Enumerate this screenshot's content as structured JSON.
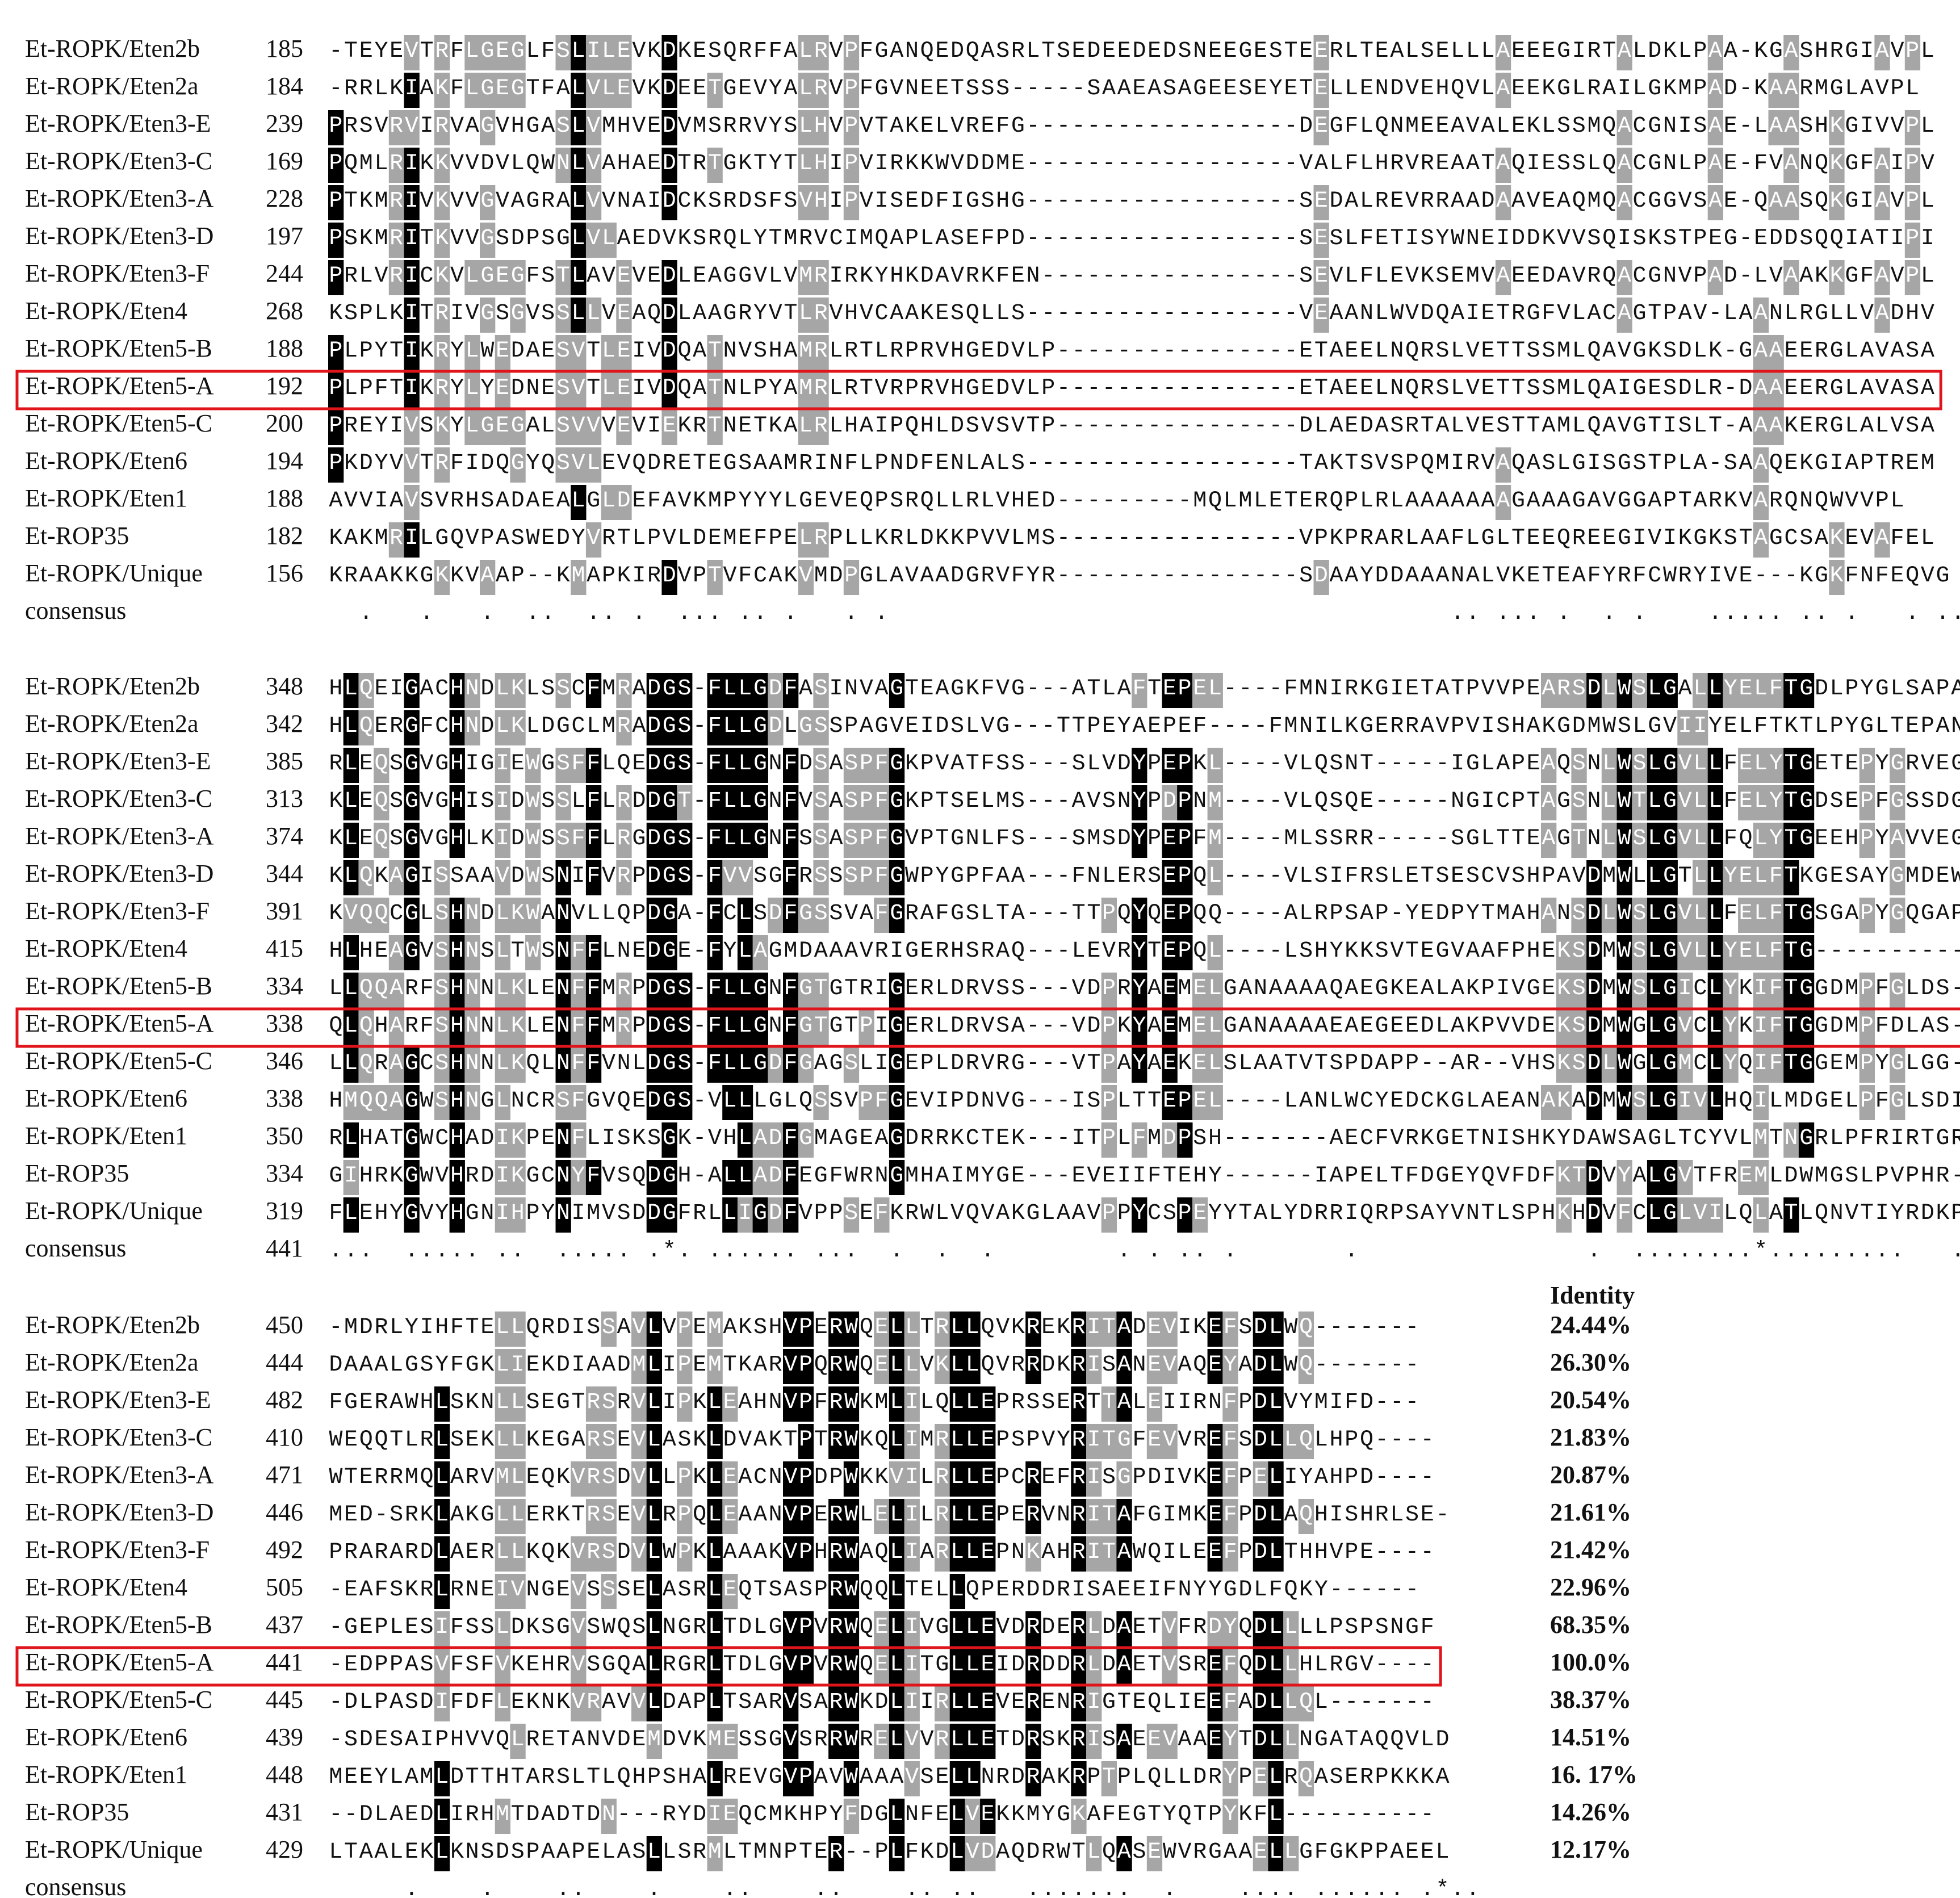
{
  "identity_header": "Identity",
  "consensus_label": "consensus",
  "colors": {
    "identical": "#000000",
    "similar": "#a6a6a6",
    "motif_blue": "#1f1fd8",
    "motif_green_bg": "#39e639",
    "highlight_box": "#e0141b"
  },
  "highlighted_sequence": "Et-ROPK/Eten5-A",
  "blocks": [
    {
      "rows": [
        {
          "name": "Et-ROPK/Eten2b",
          "start": "185",
          "seq": "-TEYEVTRFLGEGLFSLILEVKDKESQRFFALRVPFGANQEDQASRLTSEDEEDEDSNEEGESTEERLTEALSELLLAEEEGIRTALDKLPAA-KGASHRGIAVPL"
        },
        {
          "name": "Et-ROPK/Eten2a",
          "start": "184",
          "seq": "-RRLKIAKFLGEGTFALVLEVKDEETGEVYALRVPFGVNEETSSS-----SAAEASAGEESEYETELLENDVEHQVLAEEKGLRAILGKMPAD-KAARMGLAVPL"
        },
        {
          "name": "Et-ROPK/Eten3-E",
          "start": "239",
          "seq": "PRSVRVIRVAGVHGASLVMHVEDVMSRRVYSLHVPVTAKELVREFG------------------DEGFLQNMEEAVALEKLSSMQACGNISAE-LAASHKGIVVPL"
        },
        {
          "name": "Et-ROPK/Eten3-C",
          "start": "169",
          "seq": "PQMLRIKKVVDVLQWNLVAHAEDTRTGKTYTLHIPVIRKKWVDDME------------------VALFLHRVREAATAQIESSLQACGNLPAE-FVANQKGFAIPV"
        },
        {
          "name": "Et-ROPK/Eten3-A",
          "start": "228",
          "seq": "PTKMRIVKVVGVAGRALVVNAIDCKSRDSFSVHIPVISEDFIGSHG------------------SEDALREVRRAADAAVEAQMQACGGVSAE-QAASQKGIAVPL"
        },
        {
          "name": "Et-ROPK/Eten3-D",
          "start": "197",
          "seq": "PSKMRITKVVGSDPSGLVLAEDVKSRQLYTMRVCIMQAPLASEFPD------------------SESLFETISYWNEIDDKVVSQISKSTPEG-EDDSQQIATIPI"
        },
        {
          "name": "Et-ROPK/Eten3-F",
          "start": "244",
          "seq": "PRLVRICKVLGEGFSTLAVEVEDLEAGGVLVMRIRKYHKDAVRKFEN-----------------SEVLFLEVKSEMVAEEDAVRQACGNVPAD-LVAAKKGFAVPL"
        },
        {
          "name": "Et-ROPK/Eten4",
          "start": "268",
          "seq": "KSPLKITRIVGSGVSSLLVEAQDLAAGRYVTLRVHVCAAKESQLLS------------------VEAANLWVDQAIETRGFVLACAGTPAV-LAANLRGLLVADHV"
        },
        {
          "name": "Et-ROPK/Eten5-B",
          "start": "188",
          "seq": "PLPYTIKRYLWEDAESVTLEIVDQATNVSHAMRLRTLRPRVHGEDVLP----------------ETAEELNQRSLVETTSSMLQAVGKSDLK-GAAEERGLAVASA"
        },
        {
          "name": "Et-ROPK/Eten5-A",
          "start": "192",
          "seq": "PLPFTIKRYLYEDNESVTLEIVDQATNLPYAMRLRTVRPRVHGEDVLP----------------ETAEELNQRSLVETTSSMLQAIGESDLR-DAAEERGLAVASA"
        },
        {
          "name": "Et-ROPK/Eten5-C",
          "start": "200",
          "seq": "PREYIVSKYLGEGALSVVVEVIEKRTNETKALRLHAIPQHLDSVSVTP----------------DLAEDASRTALVESTTAMLQAVGTISLT-AAAKERGLALVSA"
        },
        {
          "name": "Et-ROPK/Eten6",
          "start": "194",
          "seq": "PKDYVVTRFIDQGYQSVLEVQDRETEGSAAMRINFLPNDFENLALS------------------TAKTSVSPQMIRVAQASLGISGSTPLA-SAAQEKGIAPTREM"
        },
        {
          "name": "Et-ROPK/Eten1",
          "start": "188",
          "seq": "AVVIAVSVRHSADAEALGLDEFAVKMPYYYLGEVEQPSRQLLRLVHED---------MQLMLETERQPLRLAAAAAAAGAAAGAVGGAPTARKVARQNQWVVPL"
        },
        {
          "name": "Et-ROP35",
          "start": "182",
          "seq": "KAKMRILGQVPASWEDYVRTLPVLDEMEFPELRPLLKRLDKKPVVLMS----------------VPKPRARLAAFLGLTEEQREEGIVIKGKSTAGCSAKEVAFEL"
        },
        {
          "name": "Et-ROPK/Unique",
          "start": "156",
          "seq": "KRAAKKGKKVAAP--KMAPKIRDVPTVFCAKVMDPGLAVAADGRVFYR----------------SDAAYDDAAANALVKETEAFYRFCWRYIVE---KGKFNFEQVG"
        }
      ],
      "consensus_num": "",
      "consensus": "  .   .   .  ..  .. .  ... .. .   . .                                     .. ... .  . .    ..... .. .   . ... ."
    },
    {
      "rows": [
        {
          "name": "Et-ROPK/Eten2b",
          "start": "348",
          "seq": "HLQEIGACHNDLKLSSCFMRADGS-FLLGDFASINVAGTEAGKFVG---ATLAFTEPEL----FMNIRKGIETATPVVPEARSDLWSLGALLYELFTGDLPYGLSAPAHS"
        },
        {
          "name": "Et-ROPK/Eten2a",
          "start": "342",
          "seq": "HLQERGFCHNDLKLDGCLMRADGS-FLLGDLGSSPAGVEIDSLVG---TTPEYAEPEF----FMNILKGERRAVPVISHAKGDMWSLGVIIYELFTKTLPYGLTEPANI"
        },
        {
          "name": "Et-ROPK/Eten3-E",
          "start": "385",
          "seq": "RLEQSGVGHIGIEWGSFFLQEDGS-FLLGNFDSASPFGKPVATFSS---SLVDYPEPKL----VLQSNT-----IGLAPEAQSNLWSLGVLLFELYTGETEPYGRVEGST"
        },
        {
          "name": "Et-ROPK/Eten3-C",
          "start": "313",
          "seq": "KLEQSGVGHISIDWSSLFLRDDGT-FLLGNFVSASPFGKPTSELMS---AVSNYPDPNM----VLQSQE-----NGICPTAGSNLWTLGVLLFELYTGDSEPFGSSDGPD"
        },
        {
          "name": "Et-ROPK/Eten3-A",
          "start": "374",
          "seq": "KLEQSGVGHLKIDWSSFFLRGDGS-FLLGNFSSASPFGVPTGNLFS---SMSDYPEPFM----MLSSRR-----SGLTTEAGTNLWSLGVLLFQLYTGEEHPYAVVEGRT"
        },
        {
          "name": "Et-ROPK/Eten3-D",
          "start": "344",
          "seq": "KLQKAGISSAAVDWSNIFVRPDGS-FVVSGFRSSSPFGWPYGPFAA---FNLERSEPQL----VLSIFRSLETSESCVSHPAVDMWLLGTLLYELFTKGESAYGMDEWYE"
        },
        {
          "name": "Et-ROPK/Eten3-F",
          "start": "391",
          "seq": "KVQQCGLSHNDLKWANVLLQPDGA-FCLSDFGSSVAFGRAFGSLTA---TTPQYQEPQQ----ALRPSAP-YEDPYTMAHANSDLWSLGVLLFELFTGSGAPYGQGAPKS"
        },
        {
          "name": "Et-ROPK/Eten4",
          "start": "415",
          "seq": "HLHEAGVSHNSLTWSNFFLNEDGE-FYLAGMDAAAVRIGERHSRAQ---LEVRYTEPQL----LSHYKKSVTEGVAAFPHEKSDMWSLGVLLYELFTG------------"
        },
        {
          "name": "Et-ROPK/Eten5-B",
          "start": "334",
          "seq": "LLQQARFSHNNLKLENFFMRPDGS-FLLGNFGTGTRIGERLDRVSS---VDPRYAEMELGANAAAAQAEGKEALAKPIVGEKSDMWSLGICLYKIFTGGDMPFGLDS---"
        },
        {
          "name": "Et-ROPK/Eten5-A",
          "start": "338",
          "seq": "QLQHARFSHNNLKLENFFMRPDGS-FLLGNFGTGTPIGERLDRVSA---VDPKYAEMELGANAAAAEAEGEEDLAKPVVDEKSDMWGLGVCLYKIFTGGDMPFDLAS---"
        },
        {
          "name": "Et-ROPK/Eten5-C",
          "start": "346",
          "seq": "LLQRAGCSHNNLKQLNFFVNLDGS-FLLGDFGAGSLIGEPLDRVRG---VTPAYAEKELSLAATVTSPDAPP--AR--VHSKSDLWGLGMCLYQIFTGGEMPYGLGG---"
        },
        {
          "name": "Et-ROPK/Eten6",
          "start": "338",
          "seq": "HMQQAGWSHNGLNCRSFGVQEDGS-VLLLGLQSSVPFGEVIPDNVG---ISPLTTEPEL----LANLWCYEDCKGLAEANAKADMWSLGIVLHQILMDGELPFGLSDIP-"
        },
        {
          "name": "Et-ROPK/Eten1",
          "start": "350",
          "seq": "RLHATGWCHADIKPENFLISKSGK-VHLADFGMAGEAGDRRKCTEK---ITPLFMDPSH-------AECFVRKGETNISHKYDAWSAGLTCYVLMTNGRLPFRIRTGRG"
        },
        {
          "name": "Et-ROP35",
          "start": "334",
          "seq": "GIHRKGWVHRDIKGCNYFVSQDGH-ALLADFEGFWRNGMHAIMYGE---EVEIIFTEHY------IAPELTFDGEYQVFDFKTDVYALGVTFREMLDWMGSLPVPHR---"
        },
        {
          "name": "Et-ROPK/Unique",
          "start": "319",
          "seq": "FLEHYGVYHGNIHPYNIMVSDDGFRLLIGDFVPPSEFKRWLVQVAKGLAAVPPYCSPEYYTALYDRRIQRPSAYVNTLSPHKHDVFCLGLVILQLATLQNVTIYRDKPKK"
        }
      ],
      "consensus_num": "441",
      "consensus": "...  ..... ..  ..... .*. ...... ...  .  .  .        . . .. .       .               .  ........*.........   ..."
    },
    {
      "rows": [
        {
          "name": "Et-ROPK/Eten2b",
          "start": "450",
          "seq": "-MDRLYIHFTELLQRDISSAVLVPEMAKSHVPERWQELLTRLLQVKREKRITADEVIKEFSDLWQ-------"
        },
        {
          "name": "Et-ROPK/Eten2a",
          "start": "444",
          "seq": "DAAALGSYFGKLIEKDIAADMLIPEMTKARVPQRWQELLVKLLQVRRDKRISANEVAQEYADLWQ-------"
        },
        {
          "name": "Et-ROPK/Eten3-E",
          "start": "482",
          "seq": "FGERAWHLSKNLLSEGTRSRVLIPKLEAHNVPFRWKMLILQLLEPRSSERTTALEIIRNFPDLVYMIFD---"
        },
        {
          "name": "Et-ROPK/Eten3-C",
          "start": "410",
          "seq": "WEQQTLRLSEKLLKEGARSEVLASKLDVAKTPTRWKQLIMRLLEPSPVYRITGFEVVREFSDLLQLHPQ----"
        },
        {
          "name": "Et-ROPK/Eten3-A",
          "start": "471",
          "seq": "WTERRMQLARVMLEQKVRSDVLLPKLEACNVPDPWKKVILRLLEPCREFRISGPDIVKEFPELIYAHPD----"
        },
        {
          "name": "Et-ROPK/Eten3-D",
          "start": "446",
          "seq": "MED-SRKLAKGLLERKTRSEVLRPQLEAANVPERWLELILRLLEPERVNRITAFGIMKEFPDLAQHISHRLSE-"
        },
        {
          "name": "Et-ROPK/Eten3-F",
          "start": "492",
          "seq": "PRARARDLAERLLKQKVRSDVLWPKLAAAKVPHRWAQLIARLLEPNKAHRITAWQILEEFPDLTHHVPE----"
        },
        {
          "name": "Et-ROPK/Eten4",
          "start": "505",
          "seq": "-EAFSKRLRNEIVNGEVSSSELASRLEQTSASPRWQQLTELLQPERDDRISAEEIFNYYGDLFQKY------"
        },
        {
          "name": "Et-ROPK/Eten5-B",
          "start": "437",
          "seq": "-GEPLESIFSSLDKSGVSWQSLNGRLTDLGVPVRWQELIVGLLEVDRDERLDAETVFRDYQDLLLLPSPSNGF"
        },
        {
          "name": "Et-ROPK/Eten5-A",
          "start": "441",
          "seq": "-EDPPASVFSFVKEHRVSGQALRGRLTDLGVPVRWQELITGLLEIDRDDRLDAETVSREFQDLLHLRGV----"
        },
        {
          "name": "Et-ROPK/Eten5-C",
          "start": "445",
          "seq": "-DLPASDIFDFLEKNKVRAVVLDAPLTSARVSARWKDLIIRLLEVERENRIGTEQLIEEFADLLQL-------"
        },
        {
          "name": "Et-ROPK/Eten6",
          "start": "439",
          "seq": "-SDESAIPHVVQLRETANVDEMDVKMESSGVSRRWRELVVRLLETDRSKRISAEEVAAEYTDLLNGATAQQVLD"
        },
        {
          "name": "Et-ROPK/Eten1",
          "start": "448",
          "seq": "MEEYLAMLDTTHTARSLTLQHPSHALREVGVPAVWAAAVSELLNRDRAKRPTPLQLLDRYPELRQASERPKKKA"
        },
        {
          "name": "Et-ROP35",
          "start": "431",
          "seq": "--DLAEDLIRHMTDADTDN---RYDIEQCMKHPYFDGLNFELVEKKMYGKAFEGTYQTPYKFL----------"
        },
        {
          "name": "Et-ROPK/Unique",
          "start": "429",
          "seq": "LTAALEKLKNSDSPAAPELASLLSRMLTMNPTER--PLFKDLVDAQDRWTLQASEWVRGAAELLGFGKPPAEEL"
        }
      ],
      "consensus_num": "",
      "consensus": "     .    .    ..    .    ..    ..    .. ..   .......  .    .... ...... .*.."
    },
    {
      "identity": [
        "24.44%",
        "26.30%",
        "20.54%",
        "21.83%",
        "20.87%",
        "21.61%",
        "21.42%",
        "22.96%",
        "68.35%",
        "100.0%",
        "38.37%",
        "14.51%",
        "16. 17%",
        "14.26%",
        "12.17%"
      ]
    }
  ]
}
